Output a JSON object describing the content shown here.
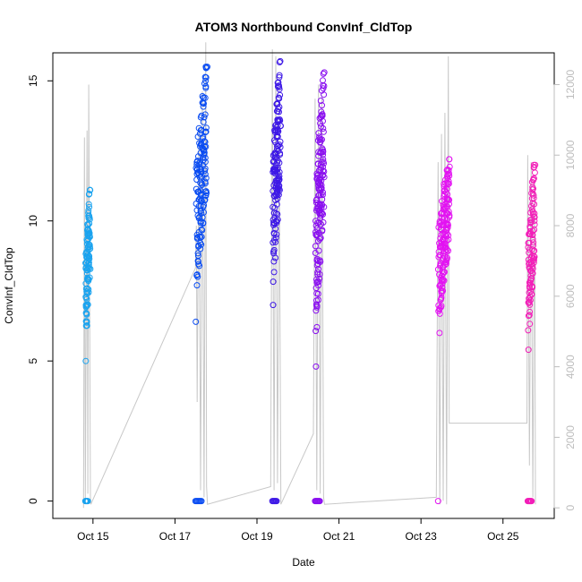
{
  "chart_data": {
    "type": "scatter",
    "title": "ATOM3 Northbound ConvInf_CldTop",
    "xlabel": "Date",
    "ylabel": "ConvInf_CldTop",
    "xlim": [
      "2024-10-14 00:30",
      "2024-10-26 06:00"
    ],
    "ylim": [
      -0.62,
      16.0
    ],
    "y2lim": [
      -300,
      12900
    ],
    "x_ticks": [
      {
        "date": "2024-10-15",
        "label": "Oct 15"
      },
      {
        "date": "2024-10-17",
        "label": "Oct 17"
      },
      {
        "date": "2024-10-19",
        "label": "Oct 19"
      },
      {
        "date": "2024-10-21",
        "label": "Oct 21"
      },
      {
        "date": "2024-10-23",
        "label": "Oct 23"
      },
      {
        "date": "2024-10-25",
        "label": "Oct 25"
      }
    ],
    "y_ticks": [
      0,
      5,
      10,
      15
    ],
    "y2_ticks": [
      0,
      2000,
      4000,
      6000,
      8000,
      10000,
      12000
    ],
    "point_marker": "open-circle",
    "color_gradient": [
      "#1aa3ef",
      "#0a4cf2",
      "#3e19e6",
      "#8a0ef0",
      "#e312f2",
      "#f21fb8"
    ],
    "secondary_line_color": "#c8c8c8",
    "series": [
      {
        "start": "2024-10-14 19:30",
        "end": "2024-10-14 22:30",
        "y_range": [
          5.0,
          11.1
        ],
        "n": 110,
        "zero_points": 6,
        "color": "#1aa3ef"
      },
      {
        "start": "2024-10-17 12:00",
        "end": "2024-10-17 19:00",
        "y_range": [
          6.4,
          15.5
        ],
        "n": 150,
        "zero_points": 7,
        "color": "#0a4cf2"
      },
      {
        "start": "2024-10-19 09:00",
        "end": "2024-10-19 14:00",
        "y_range": [
          7.0,
          15.7
        ],
        "n": 150,
        "zero_points": 6,
        "color": "#3e19e6"
      },
      {
        "start": "2024-10-20 10:00",
        "end": "2024-10-20 15:30",
        "y_range": [
          4.8,
          15.3
        ],
        "n": 160,
        "zero_points": 7,
        "color": "#8a0ef0"
      },
      {
        "start": "2024-10-23 10:00",
        "end": "2024-10-23 17:00",
        "y_range": [
          6.0,
          12.2
        ],
        "n": 160,
        "zero_points": 1,
        "color": "#e312f2"
      },
      {
        "start": "2024-10-25 14:30",
        "end": "2024-10-25 19:00",
        "y_range": [
          5.4,
          12.0
        ],
        "n": 110,
        "zero_points": 8,
        "color": "#f21fb8"
      }
    ],
    "altitude_trace": {
      "axis": "right",
      "vertices": [
        [
          "2024-10-14 18:30",
          0
        ],
        [
          "2024-10-14 19:00",
          10500
        ],
        [
          "2024-10-14 19:30",
          200
        ],
        [
          "2024-10-14 20:30",
          10700
        ],
        [
          "2024-10-14 21:00",
          400
        ],
        [
          "2024-10-14 21:30",
          12000
        ],
        [
          "2024-10-14 22:30",
          300
        ],
        [
          "2024-10-14 22:45",
          100
        ],
        [
          "2024-10-17 12:00",
          6800
        ],
        [
          "2024-10-17 12:30",
          8000
        ],
        [
          "2024-10-17 13:00",
          3000
        ],
        [
          "2024-10-17 14:00",
          10800
        ],
        [
          "2024-10-17 15:00",
          500
        ],
        [
          "2024-10-17 16:00",
          11800
        ],
        [
          "2024-10-17 17:00",
          300
        ],
        [
          "2024-10-17 18:00",
          13200
        ],
        [
          "2024-10-17 18:30",
          600
        ],
        [
          "2024-10-17 19:00",
          100
        ],
        [
          "2024-10-19 08:00",
          600
        ],
        [
          "2024-10-19 09:00",
          13000
        ],
        [
          "2024-10-19 10:00",
          500
        ],
        [
          "2024-10-19 11:00",
          12800
        ],
        [
          "2024-10-19 12:00",
          700
        ],
        [
          "2024-10-19 13:00",
          10200
        ],
        [
          "2024-10-19 14:00",
          100
        ],
        [
          "2024-10-20 09:00",
          2100
        ],
        [
          "2024-10-20 10:00",
          11600
        ],
        [
          "2024-10-20 11:00",
          500
        ],
        [
          "2024-10-20 12:00",
          12000
        ],
        [
          "2024-10-20 13:00",
          400
        ],
        [
          "2024-10-20 14:00",
          11700
        ],
        [
          "2024-10-20 15:00",
          300
        ],
        [
          "2024-10-20 15:30",
          100
        ],
        [
          "2024-10-23 09:00",
          300
        ],
        [
          "2024-10-23 10:00",
          9800
        ],
        [
          "2024-10-23 11:00",
          100
        ],
        [
          "2024-10-23 12:00",
          10600
        ],
        [
          "2024-10-23 13:00",
          200
        ],
        [
          "2024-10-23 14:00",
          11200
        ],
        [
          "2024-10-23 15:00",
          100
        ],
        [
          "2024-10-23 16:00",
          12800
        ],
        [
          "2024-10-23 16:30",
          2400
        ],
        [
          "2024-10-25 14:00",
          2400
        ],
        [
          "2024-10-25 14:30",
          10000
        ],
        [
          "2024-10-25 15:30",
          1200
        ],
        [
          "2024-10-25 16:30",
          9800
        ],
        [
          "2024-10-25 17:30",
          300
        ],
        [
          "2024-10-25 18:30",
          9300
        ],
        [
          "2024-10-25 19:00",
          100
        ]
      ]
    }
  }
}
